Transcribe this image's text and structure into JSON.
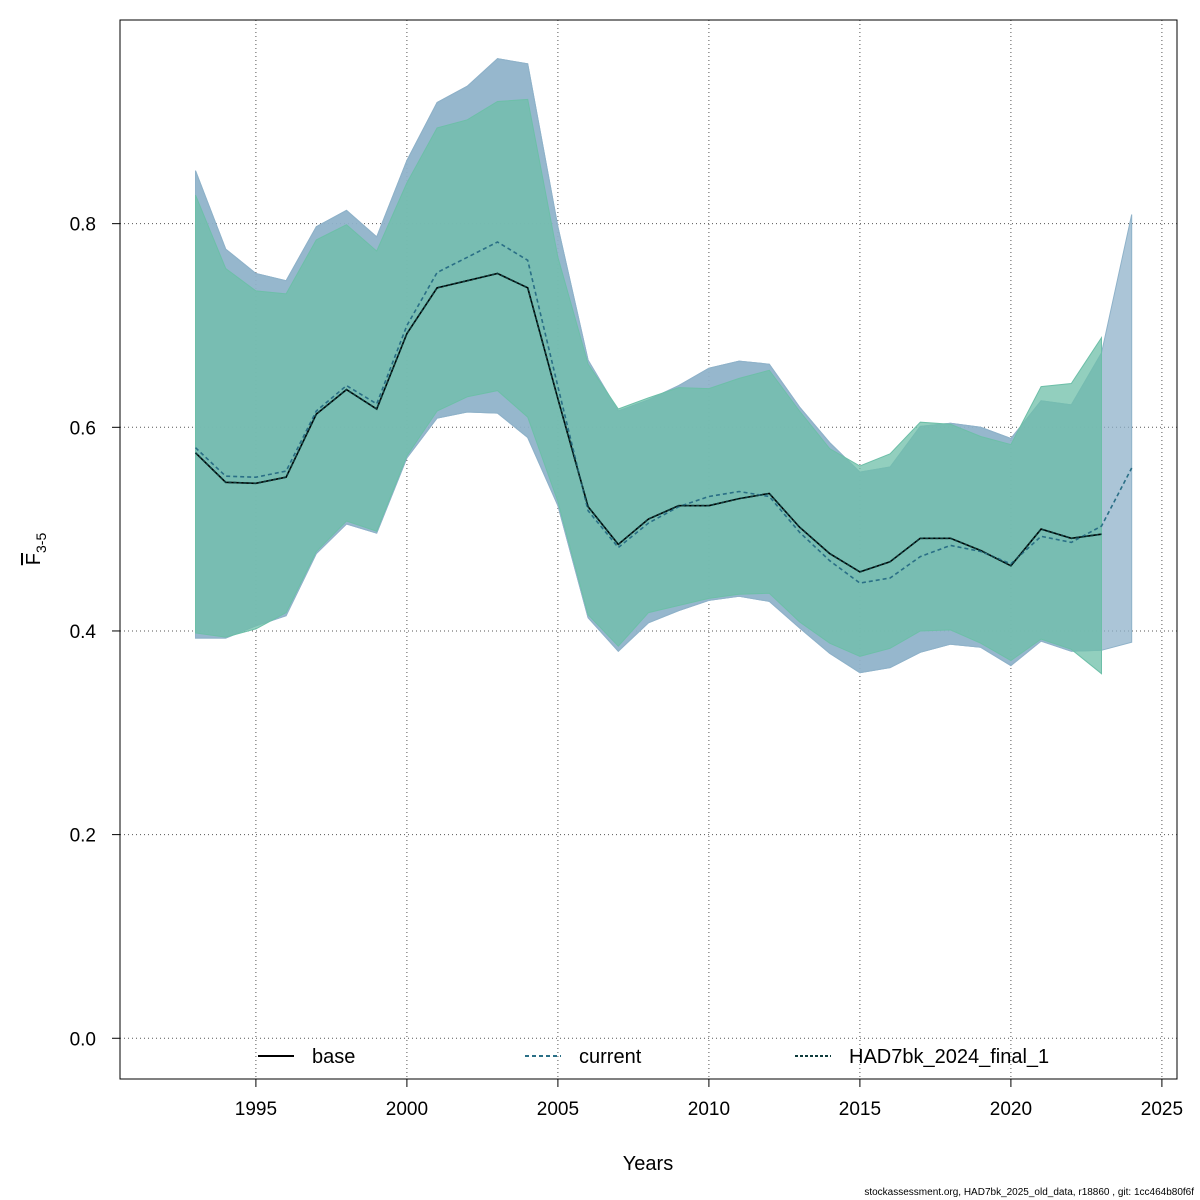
{
  "chart_data": {
    "type": "line",
    "xlabel": "Years",
    "ylabel_main": "F",
    "ylabel_sub": "3-5",
    "xlim": [
      1990.5,
      2025.5
    ],
    "ylim": [
      -0.04,
      1.0
    ],
    "xticks": [
      1995,
      2000,
      2005,
      2010,
      2015,
      2020,
      2025
    ],
    "yticks": [
      0.0,
      0.2,
      0.4,
      0.6,
      0.8
    ],
    "ytick_labels": [
      "0.0",
      "0.2",
      "0.4",
      "0.6",
      "0.8"
    ],
    "grid": true,
    "legend_position": "bottom",
    "x": [
      1993,
      1994,
      1995,
      1996,
      1997,
      1998,
      1999,
      2000,
      2001,
      2002,
      2003,
      2004,
      2005,
      2006,
      2007,
      2008,
      2009,
      2010,
      2011,
      2012,
      2013,
      2014,
      2015,
      2016,
      2017,
      2018,
      2019,
      2020,
      2021,
      2022,
      2023,
      2024
    ],
    "series": [
      {
        "name": "base",
        "color": "#000000",
        "dash": "",
        "band_color": "#8fb2c9",
        "values": [
          0.575,
          0.546,
          0.545,
          0.551,
          0.613,
          0.637,
          0.618,
          0.692,
          0.737,
          0.744,
          0.751,
          0.737,
          0.628,
          0.522,
          0.485,
          0.51,
          0.523,
          0.523,
          0.53,
          0.535,
          0.502,
          0.476,
          0.458,
          0.468,
          0.491,
          0.491,
          0.479,
          0.464,
          0.5,
          0.491,
          0.495,
          null
        ],
        "lower": [
          0.393,
          0.393,
          0.405,
          0.415,
          0.476,
          0.505,
          0.496,
          0.57,
          0.609,
          0.615,
          0.614,
          0.59,
          0.523,
          0.413,
          0.38,
          0.408,
          0.42,
          0.43,
          0.434,
          0.429,
          0.403,
          0.378,
          0.359,
          0.364,
          0.379,
          0.387,
          0.384,
          0.366,
          0.39,
          0.38,
          0.381,
          null
        ],
        "upper": [
          0.852,
          0.775,
          0.751,
          0.744,
          0.797,
          0.813,
          0.787,
          0.862,
          0.919,
          0.935,
          0.962,
          0.957,
          0.797,
          0.666,
          0.616,
          0.627,
          0.641,
          0.658,
          0.665,
          0.662,
          0.62,
          0.585,
          0.556,
          0.561,
          0.601,
          0.604,
          0.6,
          0.589,
          0.626,
          0.622,
          0.673,
          null
        ]
      },
      {
        "name": "current",
        "color": "#2a6f86",
        "dash": "4,3",
        "band_color": "#8fb2c9",
        "values": [
          0.58,
          0.552,
          0.551,
          0.557,
          0.616,
          0.641,
          0.623,
          0.7,
          0.752,
          0.767,
          0.782,
          0.764,
          0.64,
          0.518,
          0.482,
          0.506,
          0.522,
          0.532,
          0.537,
          0.532,
          0.497,
          0.469,
          0.447,
          0.452,
          0.473,
          0.484,
          0.478,
          0.466,
          0.493,
          0.487,
          0.503,
          0.56
        ],
        "lower": [
          0.393,
          0.393,
          0.405,
          0.415,
          0.476,
          0.505,
          0.496,
          0.57,
          0.609,
          0.615,
          0.614,
          0.59,
          0.523,
          0.413,
          0.38,
          0.408,
          0.42,
          0.43,
          0.434,
          0.429,
          0.403,
          0.378,
          0.359,
          0.364,
          0.379,
          0.387,
          0.384,
          0.366,
          0.39,
          0.38,
          0.381,
          0.389
        ],
        "upper": [
          0.852,
          0.775,
          0.751,
          0.744,
          0.797,
          0.813,
          0.787,
          0.862,
          0.919,
          0.935,
          0.962,
          0.957,
          0.797,
          0.666,
          0.616,
          0.627,
          0.641,
          0.658,
          0.665,
          0.662,
          0.62,
          0.585,
          0.556,
          0.561,
          0.601,
          0.604,
          0.6,
          0.589,
          0.626,
          0.622,
          0.673,
          0.809
        ]
      },
      {
        "name": "HAD7bk_2024_final_1",
        "color": "#0d3b3b",
        "dash": "3,2",
        "band_color": "#6dbfa8",
        "values": [
          0.575,
          0.546,
          0.545,
          0.551,
          0.613,
          0.637,
          0.618,
          0.692,
          0.737,
          0.744,
          0.751,
          0.737,
          0.628,
          0.522,
          0.485,
          0.51,
          0.523,
          0.523,
          0.53,
          0.535,
          0.502,
          0.476,
          0.458,
          0.468,
          0.491,
          0.491,
          0.479,
          0.464,
          0.5,
          0.491,
          0.495,
          null
        ],
        "lower": [
          0.398,
          0.394,
          0.402,
          0.418,
          0.478,
          0.508,
          0.498,
          0.572,
          0.616,
          0.63,
          0.636,
          0.61,
          0.527,
          0.416,
          0.385,
          0.418,
          0.425,
          0.432,
          0.436,
          0.437,
          0.409,
          0.388,
          0.375,
          0.383,
          0.4,
          0.401,
          0.388,
          0.371,
          0.392,
          0.382,
          0.358,
          null
        ],
        "upper": [
          0.828,
          0.756,
          0.734,
          0.731,
          0.784,
          0.799,
          0.773,
          0.84,
          0.894,
          0.902,
          0.92,
          0.922,
          0.767,
          0.662,
          0.618,
          0.629,
          0.639,
          0.638,
          0.648,
          0.656,
          0.616,
          0.579,
          0.562,
          0.574,
          0.605,
          0.603,
          0.591,
          0.583,
          0.64,
          0.643,
          0.688,
          null
        ]
      }
    ]
  },
  "footer_text": "stockassessment.org, HAD7bk_2025_old_data, r18860 , git: 1cc464b80f6f"
}
